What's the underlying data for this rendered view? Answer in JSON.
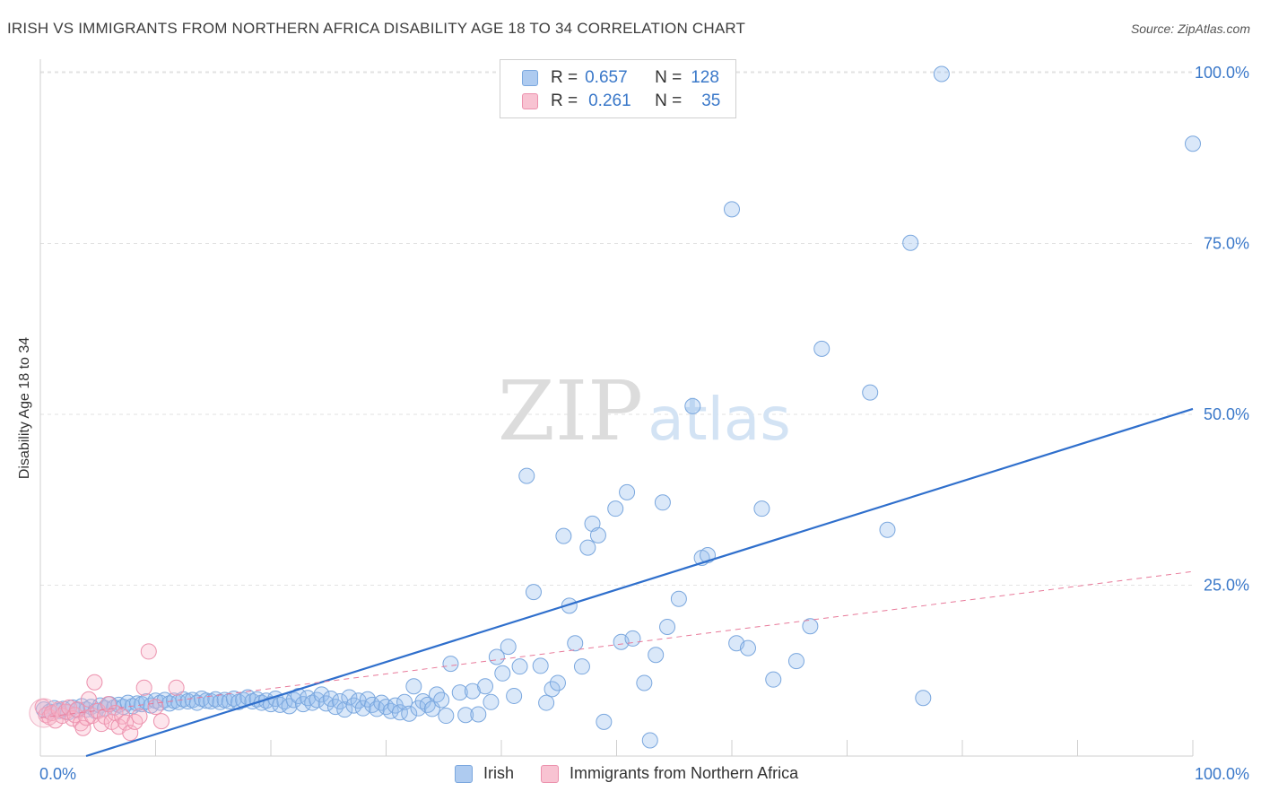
{
  "header": {
    "title": "IRISH VS IMMIGRANTS FROM NORTHERN AFRICA DISABILITY AGE 18 TO 34 CORRELATION CHART",
    "source": "Source: ZipAtlas.com"
  },
  "watermark": {
    "zip": "ZIP",
    "atlas": "atlas"
  },
  "legend": {
    "rows": [
      {
        "r_label": "R =",
        "r_value": "0.657",
        "n_label": "N =",
        "n_value": "128",
        "color": "#aecbf0",
        "border": "#7aa7de"
      },
      {
        "r_label": "R =",
        "r_value": "0.261",
        "n_label": "N =",
        "n_value": "35",
        "color": "#f8c3d2",
        "border": "#ec91ad"
      }
    ]
  },
  "bottom_legend": {
    "items": [
      {
        "label": "Irish",
        "color": "#aecbf0",
        "border": "#7aa7de"
      },
      {
        "label": "Immigrants from Northern Africa",
        "color": "#f8c3d2",
        "border": "#ec91ad"
      }
    ]
  },
  "chart_data": {
    "type": "scatter",
    "title": "IRISH VS IMMIGRANTS FROM NORTHERN AFRICA DISABILITY AGE 18 TO 34 CORRELATION CHART",
    "xlabel": "",
    "ylabel": "Disability Age 18 to 34",
    "xlim": [
      0,
      100
    ],
    "ylim": [
      0,
      100
    ],
    "x_tick_labels": [
      {
        "value": 0,
        "label": "0.0%"
      },
      {
        "value": 100,
        "label": "100.0%"
      }
    ],
    "y_tick_labels": [
      {
        "value": 25,
        "label": "25.0%"
      },
      {
        "value": 50,
        "label": "50.0%"
      },
      {
        "value": 75,
        "label": "75.0%"
      },
      {
        "value": 100,
        "label": "100.0%"
      }
    ],
    "grid": true,
    "colors": {
      "irish": "#3a78c9",
      "immigrants": "#e87a9a"
    },
    "series": [
      {
        "name": "Irish",
        "fill": "rgba(150,190,238,0.35)",
        "stroke": "#7aa7de",
        "points": [
          [
            0.3,
            6.8
          ],
          [
            0.8,
            6.5
          ],
          [
            1.2,
            7.0
          ],
          [
            1.6,
            6.6
          ],
          [
            2.0,
            6.9
          ],
          [
            2.4,
            6.4
          ],
          [
            2.8,
            7.1
          ],
          [
            3.2,
            6.7
          ],
          [
            3.6,
            7.3
          ],
          [
            4.0,
            6.8
          ],
          [
            4.4,
            7.2
          ],
          [
            4.8,
            6.6
          ],
          [
            5.2,
            7.4
          ],
          [
            5.6,
            7.0
          ],
          [
            6.0,
            7.6
          ],
          [
            6.4,
            7.1
          ],
          [
            6.8,
            7.5
          ],
          [
            7.2,
            7.2
          ],
          [
            7.6,
            7.8
          ],
          [
            8.0,
            7.3
          ],
          [
            8.4,
            7.7
          ],
          [
            8.8,
            7.6
          ],
          [
            9.2,
            8.0
          ],
          [
            9.6,
            7.4
          ],
          [
            10.0,
            8.1
          ],
          [
            10.4,
            7.8
          ],
          [
            10.8,
            8.2
          ],
          [
            11.2,
            7.7
          ],
          [
            11.6,
            8.1
          ],
          [
            12.0,
            7.9
          ],
          [
            12.4,
            8.3
          ],
          [
            12.8,
            8.0
          ],
          [
            13.2,
            8.2
          ],
          [
            13.6,
            7.8
          ],
          [
            14.0,
            8.4
          ],
          [
            14.4,
            8.1
          ],
          [
            14.8,
            8.0
          ],
          [
            15.2,
            8.3
          ],
          [
            15.6,
            7.9
          ],
          [
            16.0,
            8.2
          ],
          [
            16.4,
            8.0
          ],
          [
            16.8,
            8.4
          ],
          [
            17.2,
            7.9
          ],
          [
            17.6,
            8.2
          ],
          [
            18.0,
            8.6
          ],
          [
            18.4,
            8.0
          ],
          [
            18.8,
            8.3
          ],
          [
            19.2,
            7.8
          ],
          [
            19.6,
            8.1
          ],
          [
            20.0,
            7.6
          ],
          [
            20.4,
            8.4
          ],
          [
            20.8,
            7.5
          ],
          [
            21.2,
            8.0
          ],
          [
            21.6,
            7.3
          ],
          [
            22.0,
            8.2
          ],
          [
            22.4,
            8.8
          ],
          [
            22.8,
            7.6
          ],
          [
            23.2,
            8.5
          ],
          [
            23.6,
            7.8
          ],
          [
            24.0,
            8.2
          ],
          [
            24.4,
            9.0
          ],
          [
            24.8,
            7.7
          ],
          [
            25.2,
            8.4
          ],
          [
            25.6,
            7.2
          ],
          [
            26.0,
            8.0
          ],
          [
            26.4,
            6.8
          ],
          [
            26.8,
            8.6
          ],
          [
            27.2,
            7.4
          ],
          [
            27.6,
            8.1
          ],
          [
            28.0,
            7.0
          ],
          [
            28.4,
            8.3
          ],
          [
            28.8,
            7.5
          ],
          [
            29.2,
            6.9
          ],
          [
            29.6,
            7.8
          ],
          [
            30.0,
            7.2
          ],
          [
            30.4,
            6.6
          ],
          [
            30.8,
            7.4
          ],
          [
            31.2,
            6.4
          ],
          [
            31.6,
            7.9
          ],
          [
            32.0,
            6.2
          ],
          [
            32.4,
            10.2
          ],
          [
            32.8,
            7.0
          ],
          [
            33.2,
            8.0
          ],
          [
            33.6,
            7.5
          ],
          [
            34.0,
            6.9
          ],
          [
            34.4,
            9.0
          ],
          [
            34.8,
            8.2
          ],
          [
            35.2,
            5.9
          ],
          [
            35.6,
            13.5
          ],
          [
            36.4,
            9.3
          ],
          [
            36.9,
            6.0
          ],
          [
            37.5,
            9.5
          ],
          [
            38.0,
            6.1
          ],
          [
            38.6,
            10.2
          ],
          [
            39.1,
            7.9
          ],
          [
            39.6,
            14.5
          ],
          [
            40.1,
            12.1
          ],
          [
            40.6,
            16.0
          ],
          [
            41.1,
            8.8
          ],
          [
            41.6,
            13.1
          ],
          [
            42.2,
            41.0
          ],
          [
            42.8,
            24.0
          ],
          [
            43.4,
            13.2
          ],
          [
            43.9,
            7.8
          ],
          [
            44.4,
            9.8
          ],
          [
            44.9,
            10.7
          ],
          [
            45.4,
            32.2
          ],
          [
            45.9,
            22.0
          ],
          [
            46.4,
            16.5
          ],
          [
            47.0,
            13.1
          ],
          [
            47.5,
            30.5
          ],
          [
            47.9,
            34.0
          ],
          [
            48.4,
            32.3
          ],
          [
            48.9,
            5.0
          ],
          [
            49.9,
            36.2
          ],
          [
            50.4,
            16.7
          ],
          [
            50.9,
            38.6
          ],
          [
            51.4,
            17.2
          ],
          [
            52.4,
            10.7
          ],
          [
            52.9,
            2.3
          ],
          [
            53.4,
            14.8
          ],
          [
            54.0,
            37.1
          ],
          [
            54.4,
            18.9
          ],
          [
            55.4,
            23.0
          ],
          [
            56.6,
            51.2
          ],
          [
            57.4,
            29.0
          ],
          [
            57.9,
            29.4
          ],
          [
            60.0,
            80.0
          ],
          [
            60.4,
            16.5
          ],
          [
            61.4,
            15.8
          ],
          [
            62.6,
            36.2
          ],
          [
            63.6,
            11.2
          ],
          [
            65.6,
            13.9
          ],
          [
            66.8,
            19.0
          ],
          [
            67.8,
            59.6
          ],
          [
            72.0,
            53.2
          ],
          [
            73.5,
            33.1
          ],
          [
            75.5,
            75.1
          ],
          [
            76.6,
            8.5
          ],
          [
            78.2,
            99.8
          ],
          [
            100.0,
            89.6
          ]
        ]
      },
      {
        "name": "Immigrants from Northern Africa",
        "fill": "rgba(248,180,200,0.35)",
        "stroke": "#ec91ad",
        "points": [
          [
            0.2,
            7.2
          ],
          [
            0.5,
            6.0
          ],
          [
            0.8,
            5.7
          ],
          [
            1.0,
            6.3
          ],
          [
            1.3,
            5.2
          ],
          [
            1.6,
            6.8
          ],
          [
            1.9,
            5.9
          ],
          [
            2.2,
            6.5
          ],
          [
            2.5,
            7.1
          ],
          [
            2.8,
            5.5
          ],
          [
            3.0,
            6.0
          ],
          [
            3.2,
            6.8
          ],
          [
            3.5,
            4.8
          ],
          [
            3.7,
            4.1
          ],
          [
            4.0,
            5.6
          ],
          [
            4.2,
            8.3
          ],
          [
            4.5,
            5.9
          ],
          [
            4.7,
            10.8
          ],
          [
            5.0,
            6.6
          ],
          [
            5.3,
            4.7
          ],
          [
            5.6,
            5.8
          ],
          [
            5.9,
            7.6
          ],
          [
            6.2,
            5.0
          ],
          [
            6.5,
            6.3
          ],
          [
            6.8,
            4.3
          ],
          [
            7.1,
            5.8
          ],
          [
            7.4,
            4.9
          ],
          [
            7.8,
            3.4
          ],
          [
            8.2,
            5.0
          ],
          [
            8.6,
            5.8
          ],
          [
            9.0,
            10.0
          ],
          [
            9.4,
            15.3
          ],
          [
            10.0,
            7.2
          ],
          [
            10.5,
            5.1
          ],
          [
            11.8,
            10.0
          ]
        ]
      }
    ],
    "trendlines": [
      {
        "series": "Irish",
        "from": [
          0,
          -2.1
        ],
        "to": [
          100,
          50.8
        ]
      },
      {
        "series": "Immigrants from Northern Africa",
        "from": [
          0,
          5.6
        ],
        "to": [
          100,
          27.0
        ],
        "dashed": true
      }
    ]
  }
}
